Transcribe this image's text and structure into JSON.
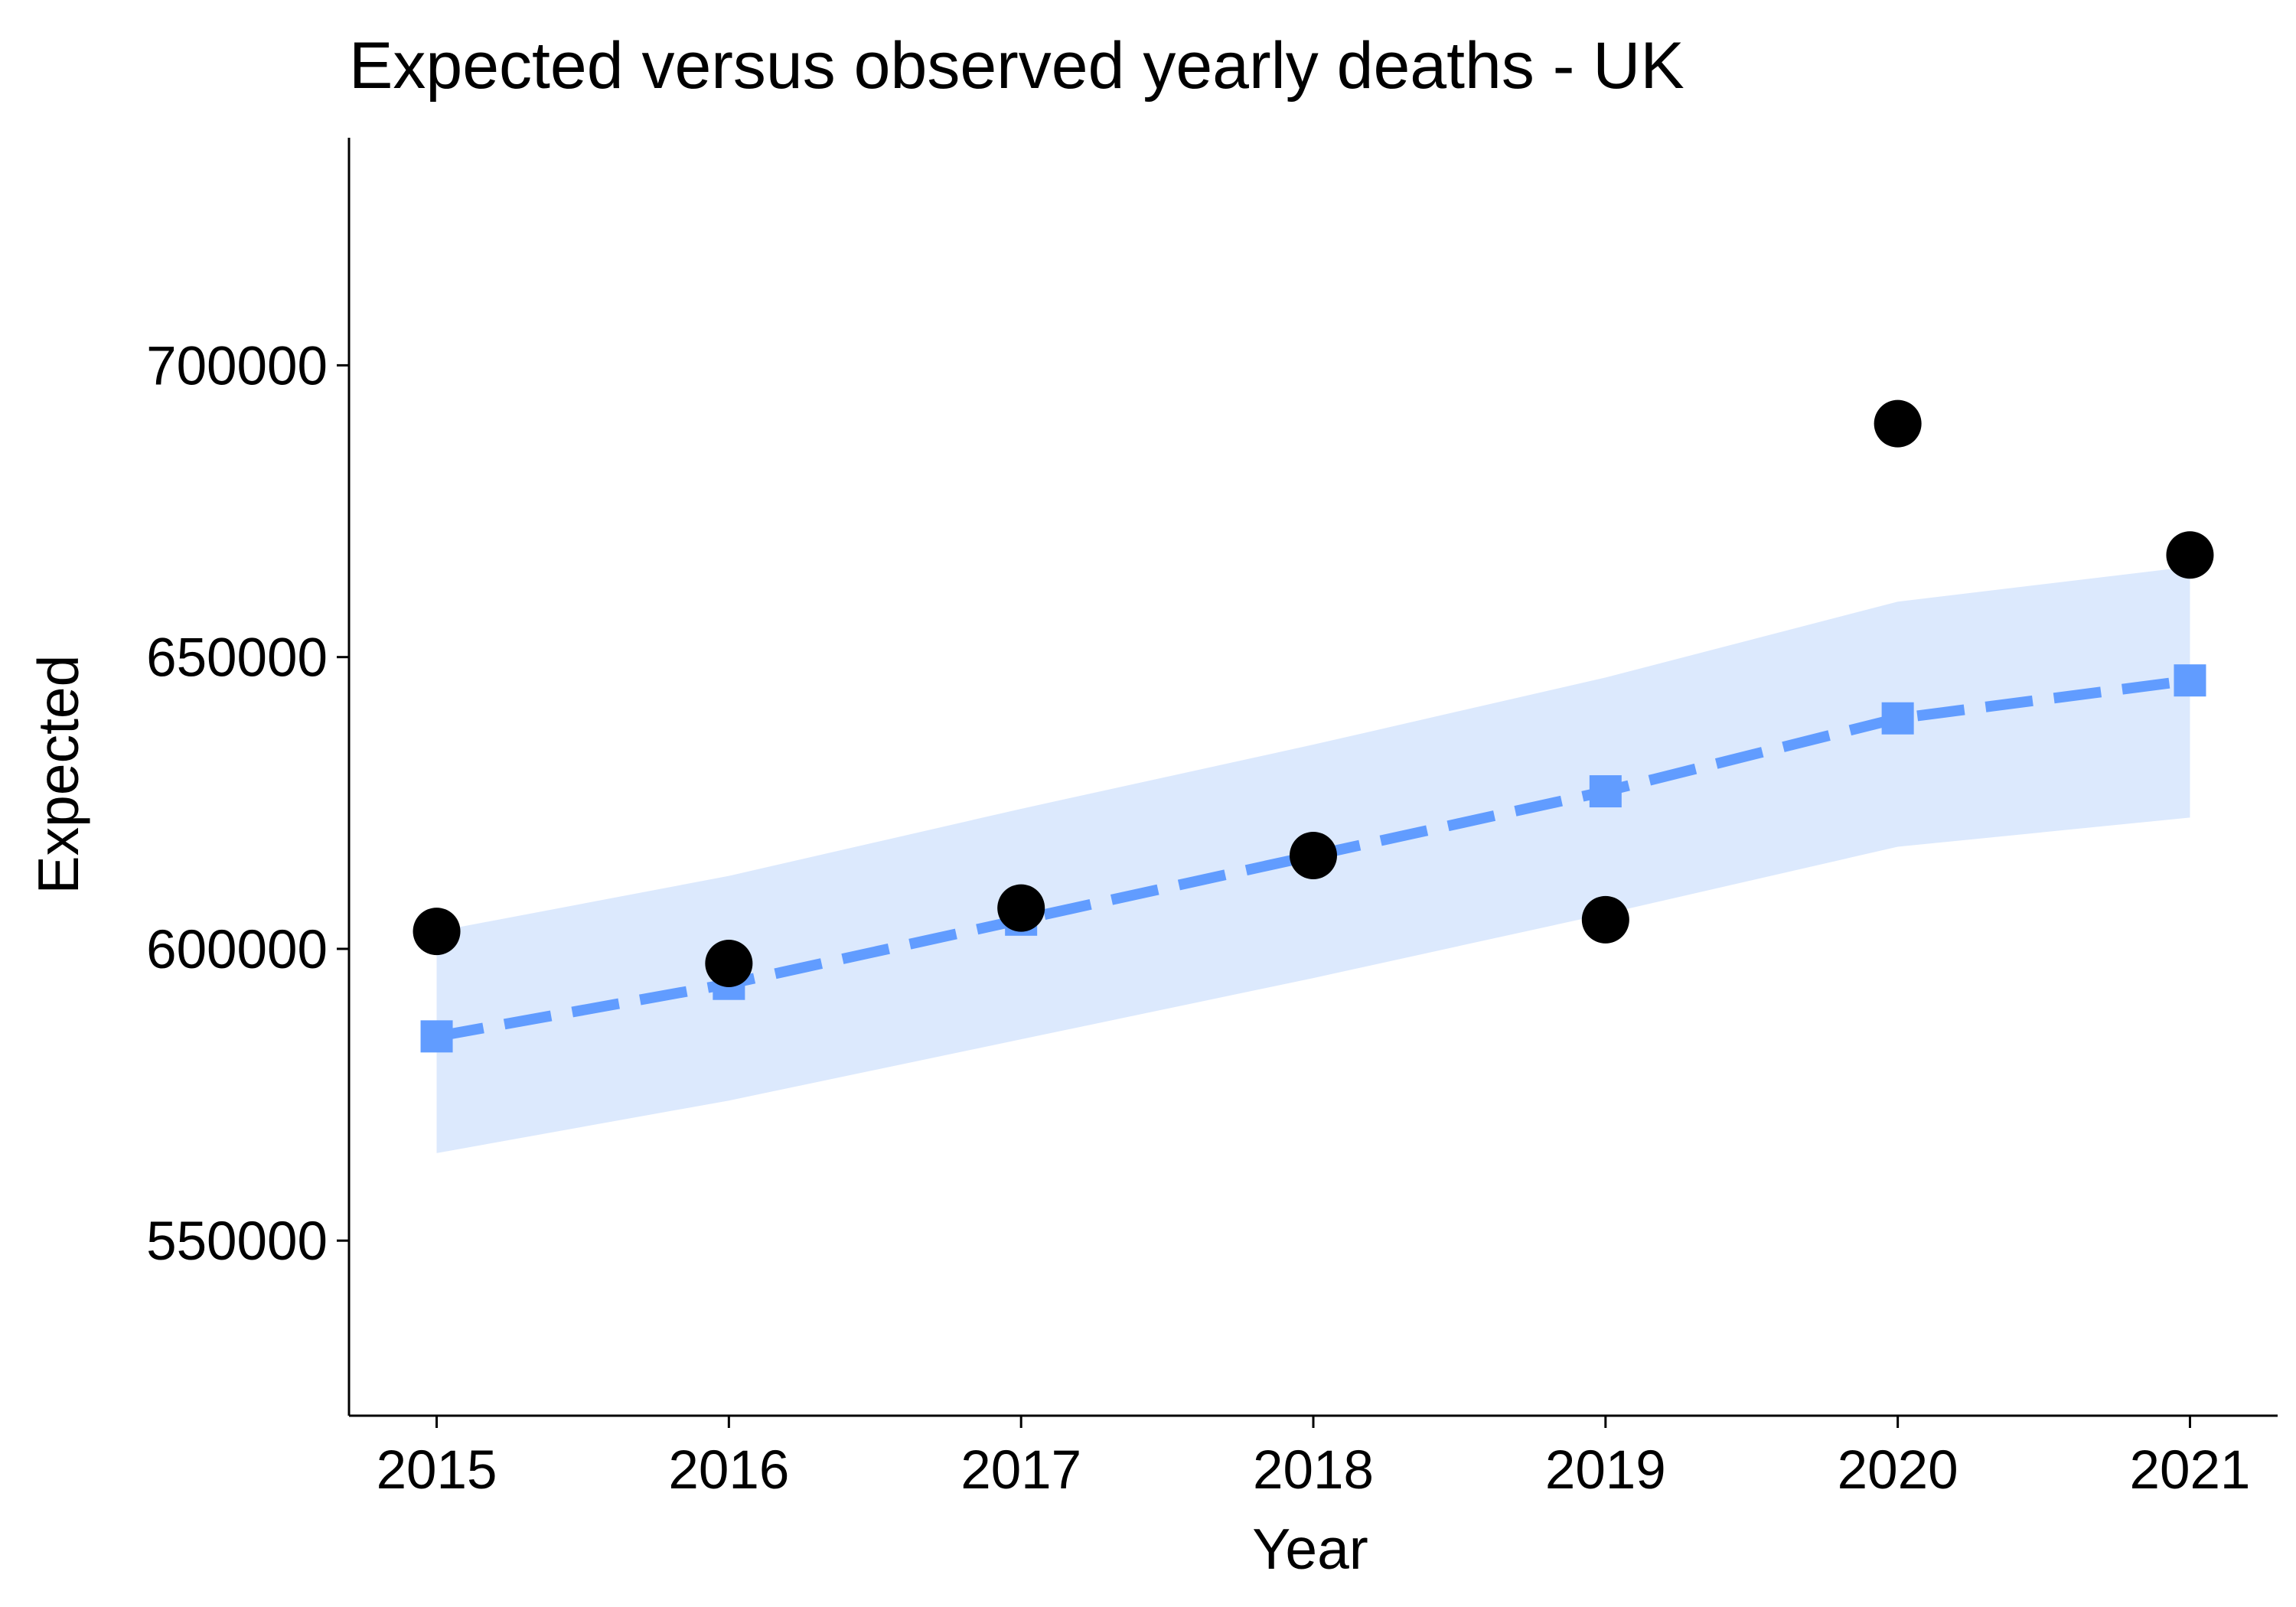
{
  "chart_data": {
    "type": "line",
    "title": "Expected versus observed yearly deaths - UK",
    "xlabel": "Year",
    "ylabel": "Expected",
    "x": [
      2015,
      2016,
      2017,
      2018,
      2019,
      2020,
      2021
    ],
    "x_tick_labels": [
      "2015",
      "2016",
      "2017",
      "2018",
      "2019",
      "2020",
      "2021"
    ],
    "xlim": [
      2014.7,
      2021.3
    ],
    "y_ticks": [
      550000,
      600000,
      650000,
      700000
    ],
    "y_tick_labels": [
      "550000",
      "600000",
      "650000",
      "700000"
    ],
    "ylim": [
      520000,
      739000
    ],
    "grid": false,
    "legend": "none",
    "series": [
      {
        "values": [
          585000,
          594000,
          605000,
          616000,
          627000,
          639500,
          646000
        ],
        "style": "dashed-line-square-markers",
        "color": "#619CFF"
      },
      {
        "values": [
          603000,
          597500,
          607000,
          616000,
          605000,
          690000,
          667500
        ],
        "style": "points",
        "color": "#000000"
      }
    ],
    "band": {
      "lower": [
        565000,
        574000,
        584500,
        595000,
        606000,
        617500,
        622500
      ],
      "upper": [
        603000,
        612500,
        624000,
        635000,
        646500,
        659500,
        665500
      ],
      "color": "#DCE9FD"
    }
  }
}
